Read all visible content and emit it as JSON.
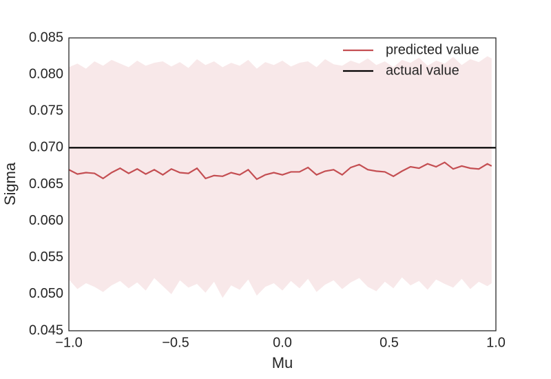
{
  "chart_data": {
    "type": "line",
    "xlabel": "Mu",
    "ylabel": "Sigma",
    "xlim": [
      -1.0,
      1.0
    ],
    "ylim": [
      0.045,
      0.085
    ],
    "xticks": [
      {
        "value": -1.0,
        "label": "−1.0"
      },
      {
        "value": -0.5,
        "label": "−0.5"
      },
      {
        "value": 0.0,
        "label": "0.0"
      },
      {
        "value": 0.5,
        "label": "0.5"
      },
      {
        "value": 1.0,
        "label": "1.0"
      }
    ],
    "yticks": [
      {
        "value": 0.045,
        "label": "0.045"
      },
      {
        "value": 0.05,
        "label": "0.050"
      },
      {
        "value": 0.055,
        "label": "0.055"
      },
      {
        "value": 0.06,
        "label": "0.060"
      },
      {
        "value": 0.065,
        "label": "0.065"
      },
      {
        "value": 0.07,
        "label": "0.070"
      },
      {
        "value": 0.075,
        "label": "0.075"
      },
      {
        "value": 0.08,
        "label": "0.080"
      },
      {
        "value": 0.085,
        "label": "0.085"
      }
    ],
    "legend": "upper right",
    "x": [
      -1.0,
      -0.96,
      -0.92,
      -0.88,
      -0.84,
      -0.8,
      -0.76,
      -0.72,
      -0.68,
      -0.64,
      -0.6,
      -0.56,
      -0.52,
      -0.48,
      -0.44,
      -0.4,
      -0.36,
      -0.32,
      -0.28,
      -0.24,
      -0.2,
      -0.16,
      -0.12,
      -0.08,
      -0.04,
      0.0,
      0.04,
      0.08,
      0.12,
      0.16,
      0.2,
      0.24,
      0.28,
      0.32,
      0.36,
      0.4,
      0.44,
      0.48,
      0.52,
      0.56,
      0.6,
      0.64,
      0.68,
      0.72,
      0.76,
      0.8,
      0.84,
      0.88,
      0.92,
      0.96,
      0.98
    ],
    "band_color": "#f8e8e9",
    "band_upper": [
      0.081,
      0.0815,
      0.0808,
      0.0818,
      0.0812,
      0.082,
      0.0815,
      0.081,
      0.0819,
      0.0812,
      0.0816,
      0.0818,
      0.0811,
      0.0817,
      0.0809,
      0.0821,
      0.0813,
      0.0818,
      0.081,
      0.0816,
      0.0812,
      0.082,
      0.0808,
      0.0817,
      0.0813,
      0.0819,
      0.0811,
      0.0816,
      0.0818,
      0.081,
      0.0821,
      0.0814,
      0.0812,
      0.0819,
      0.0815,
      0.0822,
      0.0813,
      0.0818,
      0.081,
      0.082,
      0.0816,
      0.0823,
      0.0812,
      0.0819,
      0.0815,
      0.0824,
      0.0813,
      0.0821,
      0.0817,
      0.0825,
      0.0822
    ],
    "band_lower": [
      0.052,
      0.0507,
      0.0515,
      0.051,
      0.0503,
      0.0512,
      0.0518,
      0.0508,
      0.0516,
      0.0505,
      0.0522,
      0.0511,
      0.05,
      0.0519,
      0.0509,
      0.0514,
      0.0502,
      0.0517,
      0.0495,
      0.0512,
      0.0506,
      0.052,
      0.0498,
      0.051,
      0.0515,
      0.0505,
      0.0518,
      0.0508,
      0.0521,
      0.0503,
      0.0513,
      0.0519,
      0.0507,
      0.0516,
      0.0522,
      0.051,
      0.0504,
      0.0517,
      0.0508,
      0.0523,
      0.0512,
      0.0518,
      0.0506,
      0.052,
      0.0514,
      0.0509,
      0.0521,
      0.0507,
      0.0517,
      0.0511,
      0.0515
    ],
    "series": [
      {
        "name": "predicted value",
        "color": "#c44e52",
        "values": [
          0.067,
          0.0664,
          0.0666,
          0.0665,
          0.0658,
          0.0666,
          0.0672,
          0.0665,
          0.0671,
          0.0664,
          0.067,
          0.0663,
          0.0671,
          0.0666,
          0.0665,
          0.0672,
          0.0658,
          0.0662,
          0.0661,
          0.0666,
          0.0663,
          0.067,
          0.0657,
          0.0663,
          0.0666,
          0.0663,
          0.0667,
          0.0667,
          0.0673,
          0.0663,
          0.0668,
          0.067,
          0.0663,
          0.0673,
          0.0677,
          0.067,
          0.0668,
          0.0667,
          0.0661,
          0.0668,
          0.0674,
          0.0672,
          0.0678,
          0.0674,
          0.068,
          0.0671,
          0.0675,
          0.0672,
          0.0671,
          0.0678,
          0.0675
        ]
      },
      {
        "name": "actual value",
        "color": "#000000",
        "value": 0.07
      }
    ]
  }
}
